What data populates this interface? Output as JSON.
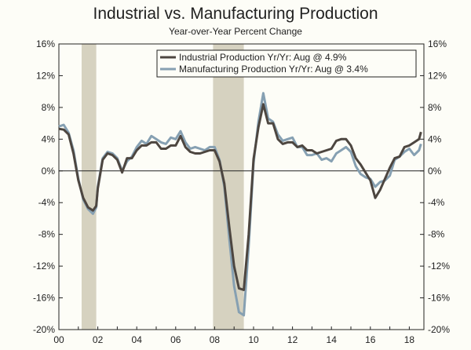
{
  "chart_data": {
    "type": "line",
    "title": "Industrial vs. Manufacturing Production",
    "subtitle": "Year-over-Year Percent Change",
    "xlabel": "",
    "ylabel": "",
    "ylim": [
      -20,
      16
    ],
    "xlim": [
      2000.0,
      2018.75
    ],
    "y_ticks_left": [
      "16%",
      "12%",
      "8%",
      "4%",
      "0%",
      "-4%",
      "-8%",
      "-12%",
      "-16%",
      "-20%"
    ],
    "y_ticks_right": [
      "16%",
      "12%",
      "8%",
      "4%",
      "0%",
      "-4%",
      "-8%",
      "-12%",
      "-16%",
      "-20%"
    ],
    "y_tick_values": [
      16,
      12,
      8,
      4,
      0,
      -4,
      -8,
      -12,
      -16,
      -20
    ],
    "x_tick_labels": [
      "00",
      "02",
      "04",
      "06",
      "08",
      "10",
      "12",
      "14",
      "16",
      "18"
    ],
    "x_tick_values": [
      2000,
      2002,
      2004,
      2006,
      2008,
      2010,
      2012,
      2014,
      2016,
      2018
    ],
    "recessions": [
      {
        "start": 2001.17,
        "end": 2001.92
      },
      {
        "start": 2007.92,
        "end": 2009.5
      }
    ],
    "colors": {
      "industrial": "#4d4640",
      "manufacturing": "#86a0b2",
      "recession": "#d6d2c0"
    },
    "legend": {
      "position": "top-right",
      "entries": [
        "Industrial Production Yr/Yr: Aug @ 4.9%",
        "Manufacturing Production Yr/Yr: Aug @ 3.4%"
      ]
    },
    "series": [
      {
        "name": "Industrial Production Yr/Yr: Aug @ 4.9%",
        "key": "industrial",
        "x": [
          2000.0,
          2000.25,
          2000.5,
          2000.75,
          2001.0,
          2001.25,
          2001.5,
          2001.75,
          2001.92,
          2002.0,
          2002.25,
          2002.5,
          2002.75,
          2003.0,
          2003.25,
          2003.5,
          2003.75,
          2004.0,
          2004.25,
          2004.5,
          2004.75,
          2005.0,
          2005.25,
          2005.5,
          2005.75,
          2006.0,
          2006.25,
          2006.5,
          2006.75,
          2007.0,
          2007.25,
          2007.5,
          2007.75,
          2008.0,
          2008.25,
          2008.5,
          2008.75,
          2009.0,
          2009.25,
          2009.5,
          2009.75,
          2010.0,
          2010.25,
          2010.5,
          2010.75,
          2011.0,
          2011.25,
          2011.5,
          2011.75,
          2012.0,
          2012.25,
          2012.5,
          2012.75,
          2013.0,
          2013.25,
          2013.5,
          2013.75,
          2014.0,
          2014.25,
          2014.5,
          2014.75,
          2015.0,
          2015.25,
          2015.5,
          2015.75,
          2016.0,
          2016.25,
          2016.5,
          2016.75,
          2017.0,
          2017.25,
          2017.5,
          2017.75,
          2018.0,
          2018.25,
          2018.5,
          2018.6
        ],
        "values": [
          5.3,
          5.2,
          4.6,
          2.2,
          -1.2,
          -3.4,
          -4.6,
          -5.0,
          -4.4,
          -2.2,
          1.4,
          2.2,
          2.0,
          1.4,
          -0.2,
          1.6,
          1.6,
          2.6,
          3.2,
          3.2,
          3.6,
          3.6,
          2.8,
          2.8,
          3.2,
          3.2,
          4.4,
          3.0,
          2.4,
          2.2,
          2.2,
          2.4,
          2.6,
          2.6,
          1.2,
          -1.6,
          -7.0,
          -12.0,
          -14.8,
          -15.0,
          -8.0,
          1.5,
          5.5,
          8.4,
          6.0,
          6.0,
          4.0,
          3.4,
          3.6,
          3.6,
          3.0,
          3.2,
          2.6,
          2.6,
          2.2,
          2.4,
          2.6,
          2.8,
          3.8,
          4.0,
          4.0,
          3.2,
          1.6,
          0.8,
          -0.2,
          -1.2,
          -3.4,
          -2.4,
          -1.0,
          0.4,
          1.6,
          1.8,
          3.0,
          3.2,
          3.6,
          4.0,
          4.9
        ]
      },
      {
        "name": "Manufacturing Production Yr/Yr: Aug @ 3.4%",
        "key": "manufacturing",
        "x": [
          2000.0,
          2000.25,
          2000.5,
          2000.75,
          2001.0,
          2001.25,
          2001.5,
          2001.75,
          2001.92,
          2002.0,
          2002.25,
          2002.5,
          2002.75,
          2003.0,
          2003.25,
          2003.5,
          2003.75,
          2004.0,
          2004.25,
          2004.5,
          2004.75,
          2005.0,
          2005.25,
          2005.5,
          2005.75,
          2006.0,
          2006.25,
          2006.5,
          2006.75,
          2007.0,
          2007.25,
          2007.5,
          2007.75,
          2008.0,
          2008.25,
          2008.5,
          2008.75,
          2009.0,
          2009.25,
          2009.5,
          2009.75,
          2010.0,
          2010.25,
          2010.5,
          2010.75,
          2011.0,
          2011.25,
          2011.5,
          2011.75,
          2012.0,
          2012.25,
          2012.5,
          2012.75,
          2013.0,
          2013.25,
          2013.5,
          2013.75,
          2014.0,
          2014.25,
          2014.5,
          2014.75,
          2015.0,
          2015.25,
          2015.5,
          2015.75,
          2016.0,
          2016.25,
          2016.5,
          2016.75,
          2017.0,
          2017.25,
          2017.5,
          2017.75,
          2018.0,
          2018.25,
          2018.5,
          2018.6
        ],
        "values": [
          5.6,
          5.8,
          4.8,
          2.6,
          -1.0,
          -3.6,
          -4.8,
          -5.4,
          -4.6,
          -2.0,
          1.6,
          2.4,
          2.2,
          1.6,
          0.0,
          1.2,
          1.8,
          3.0,
          3.8,
          3.4,
          4.4,
          4.0,
          3.6,
          3.4,
          4.2,
          4.0,
          5.0,
          3.6,
          2.8,
          3.0,
          2.8,
          2.6,
          3.0,
          3.0,
          1.4,
          -2.0,
          -8.5,
          -14.5,
          -17.8,
          -18.2,
          -9.5,
          1.0,
          6.2,
          9.8,
          6.6,
          6.2,
          4.6,
          3.8,
          4.0,
          4.2,
          3.0,
          3.0,
          2.0,
          2.0,
          2.2,
          1.4,
          1.6,
          1.2,
          2.2,
          2.6,
          3.0,
          2.4,
          0.6,
          -0.4,
          -0.8,
          -1.0,
          -2.0,
          -1.4,
          -1.2,
          -0.6,
          1.4,
          1.8,
          2.4,
          2.8,
          2.0,
          2.6,
          3.4
        ]
      }
    ]
  }
}
